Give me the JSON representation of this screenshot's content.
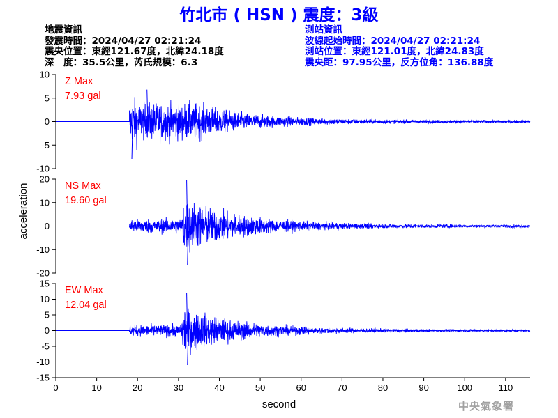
{
  "title": "竹北市 ( HSN ) 震度：3級",
  "earthquake_info": {
    "heading": "地震資訊",
    "origin_time": "發震時間：2024/04/27 02:21:24",
    "epicenter": "震央位置：東經121.67度，北緯24.18度",
    "depth_magnitude": "深　度：35.5公里，芮氏規模：6.3"
  },
  "station_info": {
    "heading": "測站資訊",
    "wave_start": "波線起始時間：2024/04/27 02:21:24",
    "location": "測站位置：東經121.01度，北緯24.83度",
    "distance_azimuth": "震央距：97.95公里，反方位角：136.88度"
  },
  "agency": "中央氣象署",
  "colors": {
    "trace": "#0000ff",
    "max_label": "#ff0000",
    "axis": "#000000",
    "title": "#0000ff"
  },
  "chart_data": [
    {
      "type": "line",
      "component": "Z",
      "max_label": "Z Max",
      "max_value": "7.93 gal",
      "ylim": [
        -10,
        10
      ],
      "yticks": [
        "10",
        "5",
        "0",
        "-5",
        "-10"
      ],
      "xlim": [
        0,
        116
      ],
      "onset_s": 18,
      "peak_positive": 6.8,
      "peak_negative": -7.93,
      "series": [
        {
          "x_start": 0,
          "x_end": 116,
          "pre_event_value": 0
        }
      ]
    },
    {
      "type": "line",
      "component": "NS",
      "max_label": "NS Max",
      "max_value": "19.60 gal",
      "ylim": [
        -20,
        20
      ],
      "yticks": [
        "20",
        "10",
        "0",
        "-10",
        "-20"
      ],
      "xlim": [
        0,
        116
      ],
      "onset_s": 18,
      "peak_positive": 19.6,
      "peak_negative": -16.5,
      "series": [
        {
          "x_start": 0,
          "x_end": 116,
          "pre_event_value": 0
        }
      ]
    },
    {
      "type": "line",
      "component": "EW",
      "max_label": "EW Max",
      "max_value": "12.04 gal",
      "ylim": [
        -15,
        15
      ],
      "yticks": [
        "15",
        "10",
        "5",
        "0",
        "-5",
        "-10",
        "-15"
      ],
      "xlim": [
        0,
        116
      ],
      "onset_s": 18,
      "peak_positive": 12.04,
      "peak_negative": -11,
      "series": [
        {
          "x_start": 0,
          "x_end": 116,
          "pre_event_value": 0
        }
      ]
    }
  ],
  "x_axis": {
    "label": "second",
    "ticks": [
      "0",
      "10",
      "20",
      "30",
      "40",
      "50",
      "60",
      "70",
      "80",
      "90",
      "100",
      "110"
    ]
  },
  "y_axis": {
    "label": "acceleration"
  }
}
